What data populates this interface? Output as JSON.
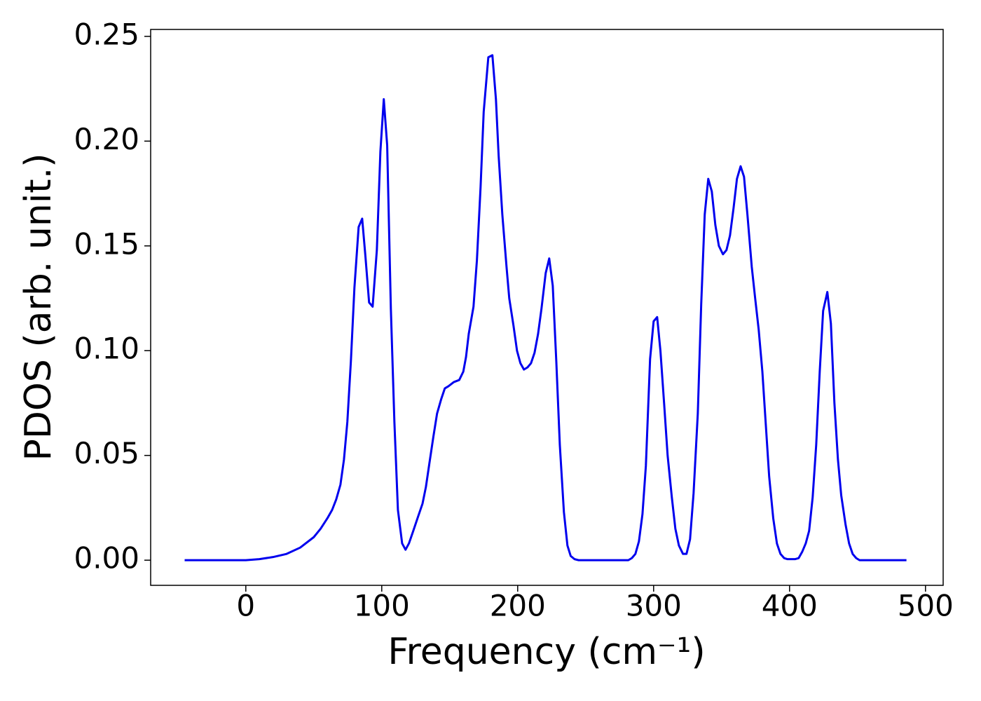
{
  "chart_data": {
    "type": "line",
    "xlabel": "Frequency (cm⁻¹)",
    "ylabel": "PDOS (arb. unit.)",
    "color": "#0000ee",
    "xlim": [
      -70,
      513
    ],
    "ylim": [
      -0.012,
      0.2533
    ],
    "xticks": [
      0,
      100,
      200,
      300,
      400,
      500
    ],
    "yticks": [
      {
        "value": 0,
        "label": "0.00"
      },
      {
        "value": 0.05,
        "label": "0.05"
      },
      {
        "value": 0.1,
        "label": "0.10"
      },
      {
        "value": 0.15,
        "label": "0.15"
      },
      {
        "value": 0.2,
        "label": "0.20"
      },
      {
        "value": 0.25,
        "label": "0.25"
      }
    ],
    "x": [
      -45,
      0,
      10,
      20,
      30,
      40,
      50,
      55,
      60,
      63.5,
      66.5,
      69.6,
      72.2,
      74.7,
      77.3,
      79.9,
      83,
      85.6,
      88,
      90.7,
      93.3,
      96.4,
      99,
      101.5,
      104,
      106.7,
      109.3,
      111.9,
      115,
      117.5,
      120,
      123.2,
      126.3,
      130,
      132.5,
      135,
      138,
      140.7,
      143.8,
      146.4,
      149,
      153,
      157,
      160,
      162,
      164,
      167.5,
      170,
      172.7,
      175,
      178.4,
      181.4,
      184,
      186,
      188.7,
      191.8,
      193.8,
      196.9,
      199.5,
      202,
      204.6,
      207.2,
      209.8,
      212.4,
      215,
      217.5,
      220.6,
      223.2,
      225.8,
      228.4,
      231,
      234,
      236.6,
      239,
      241.8,
      244.8,
      281.4,
      284,
      286.6,
      289.2,
      291.8,
      294.3,
      297.4,
      300,
      302.6,
      305,
      307.7,
      310.3,
      313.4,
      316,
      318.6,
      321.6,
      324.2,
      326.8,
      329.4,
      332.5,
      335,
      337.6,
      340.2,
      342.8,
      345.4,
      348,
      351,
      353.6,
      356.2,
      358.8,
      361.3,
      364,
      366.5,
      369,
      372.2,
      374.7,
      377.3,
      380,
      382.5,
      385,
      388,
      390.7,
      393.3,
      396,
      398.5,
      401,
      404,
      406.7,
      409.3,
      411.9,
      414.4,
      417,
      419.6,
      422.2,
      424.7,
      427.8,
      430.4,
      433,
      435.6,
      438,
      441.2,
      443.8,
      446.4,
      449,
      451.5,
      486
    ],
    "values": [
      0,
      0,
      0.0005,
      0.0015,
      0.003,
      0.006,
      0.011,
      0.015,
      0.02,
      0.024,
      0.029,
      0.036,
      0.048,
      0.066,
      0.095,
      0.13,
      0.159,
      0.163,
      0.145,
      0.123,
      0.121,
      0.148,
      0.195,
      0.22,
      0.198,
      0.12,
      0.066,
      0.024,
      0.008,
      0.005,
      0.008,
      0.014,
      0.02,
      0.027,
      0.035,
      0.046,
      0.059,
      0.07,
      0.077,
      0.082,
      0.083,
      0.085,
      0.086,
      0.09,
      0.097,
      0.108,
      0.121,
      0.143,
      0.178,
      0.214,
      0.24,
      0.241,
      0.22,
      0.193,
      0.165,
      0.14,
      0.125,
      0.112,
      0.1,
      0.094,
      0.091,
      0.092,
      0.094,
      0.099,
      0.108,
      0.12,
      0.137,
      0.144,
      0.131,
      0.095,
      0.055,
      0.023,
      0.007,
      0.002,
      0.0005,
      0,
      0,
      0.001,
      0.003,
      0.009,
      0.022,
      0.045,
      0.096,
      0.114,
      0.116,
      0.1,
      0.075,
      0.05,
      0.03,
      0.015,
      0.007,
      0.003,
      0.003,
      0.01,
      0.032,
      0.07,
      0.122,
      0.165,
      0.182,
      0.176,
      0.16,
      0.15,
      0.146,
      0.148,
      0.155,
      0.168,
      0.182,
      0.188,
      0.183,
      0.165,
      0.14,
      0.125,
      0.11,
      0.09,
      0.065,
      0.04,
      0.02,
      0.008,
      0.003,
      0.001,
      0.0005,
      0.0005,
      0.0005,
      0.001,
      0.004,
      0.008,
      0.014,
      0.03,
      0.055,
      0.09,
      0.119,
      0.128,
      0.113,
      0.075,
      0.048,
      0.031,
      0.017,
      0.008,
      0.003,
      0.001,
      0,
      0
    ]
  }
}
